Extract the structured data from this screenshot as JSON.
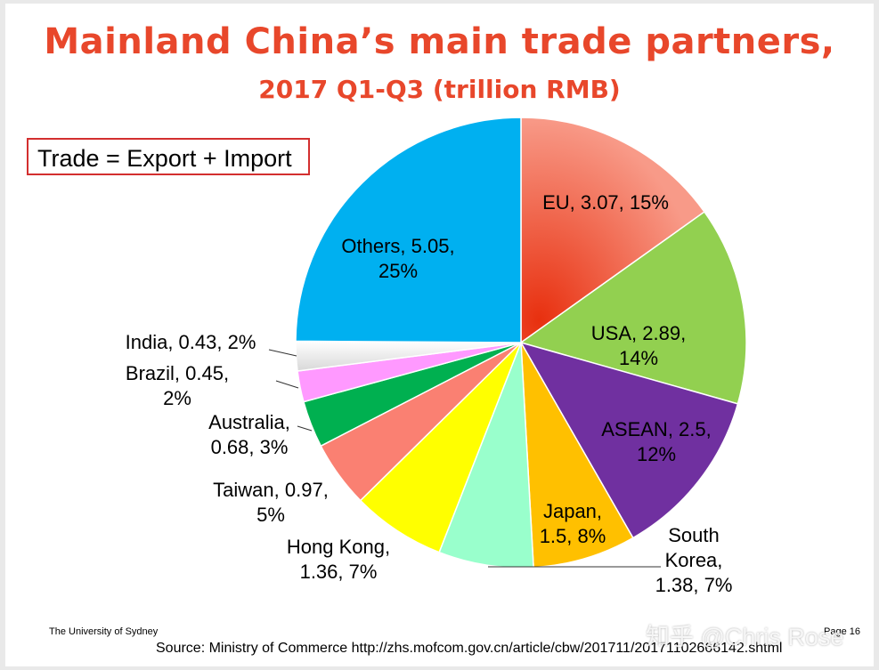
{
  "chart_data": {
    "type": "pie",
    "title": "Mainland China’s main trade partners,",
    "subtitle": "2017 Q1-Q3 (trillion RMB)",
    "slices": [
      {
        "name": "EU",
        "value": 3.07,
        "percent": "15%",
        "color": "#f0614a",
        "label": [
          "EU, 3.07, 15%"
        ]
      },
      {
        "name": "USA",
        "value": 2.89,
        "percent": "14%",
        "color": "#92d050",
        "label": [
          "USA, 2.89,",
          "14%"
        ]
      },
      {
        "name": "ASEAN",
        "value": 2.5,
        "percent": "12%",
        "color": "#7030a0",
        "label": [
          "ASEAN, 2.5,",
          "12%"
        ]
      },
      {
        "name": "Japan",
        "value": 1.5,
        "percent": "8%",
        "color": "#ffc000",
        "label": [
          "Japan,",
          "1.5, 8%"
        ]
      },
      {
        "name": "South Korea",
        "value": 1.38,
        "percent": "7%",
        "color": "#99ffcc",
        "label": [
          "South",
          "Korea,",
          "1.38, 7%"
        ]
      },
      {
        "name": "Hong Kong",
        "value": 1.36,
        "percent": "7%",
        "color": "#ffff00",
        "label": [
          "Hong Kong,",
          "1.36, 7%"
        ]
      },
      {
        "name": "Taiwan",
        "value": 0.97,
        "percent": "5%",
        "color": "#fa8072",
        "label": [
          "Taiwan, 0.97,",
          "5%"
        ]
      },
      {
        "name": "Australia",
        "value": 0.68,
        "percent": "3%",
        "color": "#00b050",
        "label": [
          "Australia,",
          "0.68, 3%"
        ]
      },
      {
        "name": "Brazil",
        "value": 0.45,
        "percent": "2%",
        "color": "#ff99ff",
        "label": [
          "Brazil, 0.45,",
          "2%"
        ]
      },
      {
        "name": "India",
        "value": 0.43,
        "percent": "2%",
        "color": "#eeeeee",
        "label": [
          "India, 0.43, 2%"
        ]
      },
      {
        "name": "Others",
        "value": 5.05,
        "percent": "25%",
        "color": "#00b0f0",
        "label": [
          "Others, 5.05,",
          "25%"
        ]
      }
    ],
    "legend": "none"
  },
  "annotation": "Trade = Export + Import",
  "footer": {
    "institution": "The University of Sydney",
    "source": "Source: Ministry of Commerce http://zhs.mofcom.gov.cn/article/cbw/201711/20171102666142.shtml",
    "page": "Page 16"
  },
  "watermark": "知乎 @Chris Rose"
}
